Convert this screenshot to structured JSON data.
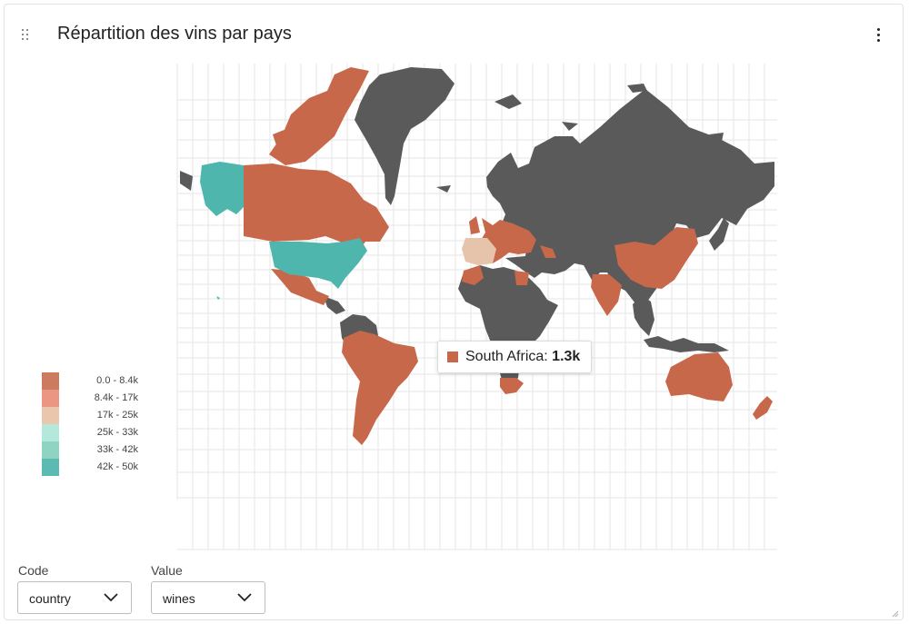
{
  "widget": {
    "title": "Répartition des vins par pays"
  },
  "icons": {
    "drag": "drag-handle-icon",
    "menu": "more-vertical-icon",
    "chevron": "chevron-down-icon",
    "resize": "resize-handle-icon"
  },
  "legend": {
    "items": [
      {
        "label": "0.0 - 8.4k",
        "color": "#cd7b5f"
      },
      {
        "label": "8.4k - 17k",
        "color": "#eb9682"
      },
      {
        "label": "17k - 25k",
        "color": "#e9c6ac"
      },
      {
        "label": "25k - 33k",
        "color": "#b3e8da"
      },
      {
        "label": "33k - 42k",
        "color": "#8fd4c2"
      },
      {
        "label": "42k - 50k",
        "color": "#5bbab2"
      }
    ]
  },
  "map_colors": {
    "no_data": "#5a5a5a",
    "low": "#c8684b",
    "highlight_country": "#e5c4ab",
    "high": "#4eb6ad"
  },
  "tooltip": {
    "country": "South Africa",
    "separator": ": ",
    "value": "1.3k",
    "color": "#c8684b"
  },
  "controls": {
    "code": {
      "label": "Code",
      "value": "country"
    },
    "value": {
      "label": "Value",
      "value": "wines"
    }
  }
}
